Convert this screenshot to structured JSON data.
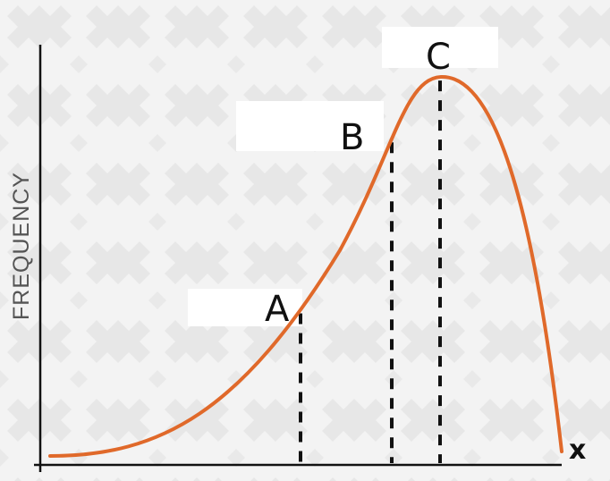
{
  "chart_data": {
    "type": "line",
    "title": "",
    "xlabel": "x",
    "ylabel": "FREQUENCY",
    "grid": false,
    "legend": "none",
    "curve_color": "#e0692a",
    "axis_color": "#111111",
    "marker_color": "#111111",
    "label_box_color": "#ffffff",
    "marked_points": [
      {
        "label": "A"
      },
      {
        "label": "B"
      },
      {
        "label": "C"
      }
    ]
  }
}
